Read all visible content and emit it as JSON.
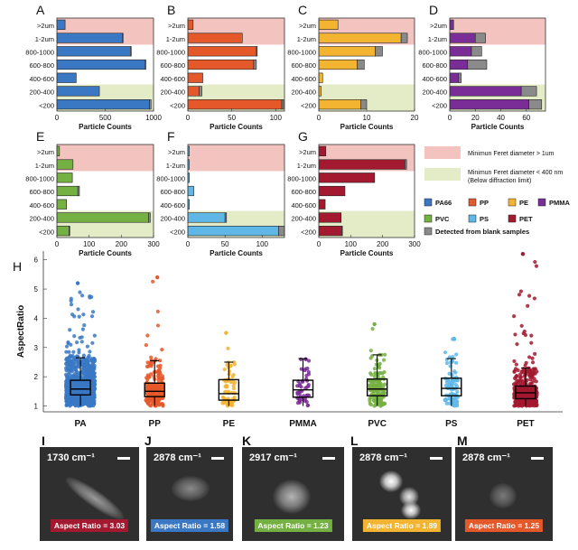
{
  "colors": {
    "PA66": "#3a78c4",
    "PP": "#e5582a",
    "PE": "#f2b431",
    "PMMA": "#7b2d97",
    "PVC": "#75b043",
    "PS": "#5fb7e8",
    "PET": "#a3192f",
    "blank": "#8a8a8a",
    "pink": "#f3c3bf",
    "green": "#e4ecc7"
  },
  "chart_data": [
    {
      "type": "bar",
      "panel": "A",
      "material": "PA66",
      "categories": [
        ">2um",
        "1-2um",
        "800-1000",
        "600-800",
        "400-600",
        "200-400",
        "<200"
      ],
      "values": [
        85,
        680,
        760,
        915,
        200,
        440,
        960
      ],
      "blank": [
        0,
        5,
        10,
        5,
        0,
        0,
        15
      ],
      "xlim": [
        0,
        1000
      ],
      "xticks": [
        "0",
        "500",
        "1000"
      ],
      "xlabel": "Particle Counts"
    },
    {
      "type": "bar",
      "panel": "B",
      "material": "PP",
      "categories": [
        ">2um",
        "1-2um",
        "800-1000",
        "600-800",
        "400-600",
        "200-400",
        "<200"
      ],
      "values": [
        6,
        62,
        78,
        75,
        17,
        13,
        107
      ],
      "blank": [
        0,
        0,
        1,
        3,
        0,
        3,
        2
      ],
      "xlim": [
        0,
        110
      ],
      "xticks": [
        "0",
        "50",
        "100"
      ],
      "xlabel": "Particle Counts"
    },
    {
      "type": "bar",
      "panel": "C",
      "material": "PE",
      "categories": [
        ">2um",
        "1-2um",
        "800-1000",
        "600-800",
        "400-600",
        "200-400",
        "<200"
      ],
      "values": [
        4,
        17.2,
        11.8,
        8,
        0.8,
        0.5,
        8.8
      ],
      "blank": [
        0,
        1.3,
        1.5,
        1.5,
        0,
        0,
        1.2
      ],
      "xlim": [
        0,
        20
      ],
      "xticks": [
        "0",
        "10",
        "20"
      ],
      "xlabel": "Particle Counts"
    },
    {
      "type": "bar",
      "panel": "D",
      "material": "PMMA",
      "categories": [
        ">2um",
        "1-2um",
        "800-1000",
        "600-800",
        "400-600",
        "200-400",
        "<200"
      ],
      "values": [
        3,
        20,
        17,
        14,
        7,
        56,
        62
      ],
      "blank": [
        0,
        8,
        8,
        15,
        2,
        12,
        10
      ],
      "xlim": [
        0,
        75
      ],
      "xticks": [
        "0",
        "20",
        "40",
        "60"
      ],
      "xlabel": "Particle Counts"
    },
    {
      "type": "bar",
      "panel": "E",
      "material": "PVC",
      "categories": [
        ">2um",
        "1-2um",
        "800-1000",
        "600-800",
        "400-600",
        "200-400",
        "<200"
      ],
      "values": [
        8,
        50,
        48,
        65,
        30,
        285,
        38
      ],
      "blank": [
        0,
        0,
        0,
        5,
        0,
        5,
        2
      ],
      "xlim": [
        0,
        300
      ],
      "xticks": [
        "0",
        "100",
        "200",
        "300"
      ],
      "xlabel": "Particle Counts"
    },
    {
      "type": "bar",
      "panel": "F",
      "material": "PS",
      "categories": [
        ">2um",
        "1-2um",
        "800-1000",
        "600-800",
        "400-600",
        "200-400",
        "<200"
      ],
      "values": [
        2,
        2,
        2,
        8,
        2,
        50,
        122
      ],
      "blank": [
        0,
        0,
        0,
        0,
        0,
        2,
        8
      ],
      "xlim": [
        0,
        130
      ],
      "xticks": [
        "0",
        "50",
        "100"
      ],
      "xlabel": "Particle Counts"
    },
    {
      "type": "bar",
      "panel": "G",
      "material": "PET",
      "categories": [
        ">2um",
        "1-2um",
        "800-1000",
        "600-800",
        "400-600",
        "200-400",
        "<200"
      ],
      "values": [
        22,
        270,
        175,
        82,
        20,
        70,
        72
      ],
      "blank": [
        0,
        5,
        0,
        0,
        0,
        0,
        2
      ],
      "xlim": [
        0,
        300
      ],
      "xticks": [
        "0",
        "100",
        "200",
        "300"
      ],
      "xlabel": "Particle Counts"
    },
    {
      "type": "box",
      "panel": "H",
      "title": "",
      "ylabel": "AspectRatio",
      "ylim": [
        0.8,
        6.3
      ],
      "yticks": [
        1,
        2,
        3,
        4,
        5,
        6
      ],
      "categories": [
        "PA",
        "PP",
        "PE",
        "PMMA",
        "PVC",
        "PS",
        "PET"
      ],
      "q1": [
        1.38,
        1.32,
        1.2,
        1.3,
        1.35,
        1.35,
        1.25
      ],
      "median": [
        1.58,
        1.5,
        1.42,
        1.55,
        1.58,
        1.6,
        1.45
      ],
      "q3": [
        1.88,
        1.78,
        1.9,
        1.88,
        1.92,
        1.95,
        1.68
      ],
      "whisker_low": [
        1,
        1,
        1,
        1,
        1,
        1,
        1
      ],
      "whisker_high": [
        2.65,
        2.55,
        2.5,
        2.62,
        2.75,
        2.62,
        2.3
      ],
      "max_outlier": [
        5.2,
        5.4,
        3.5,
        2.6,
        3.8,
        3.3,
        6.2
      ],
      "point_counts": [
        900,
        220,
        60,
        45,
        150,
        90,
        420
      ]
    }
  ],
  "legend": {
    "feret_1um": "Minimun Feret diameter > 1um",
    "feret_400nm_line1": "Minimun Feret diameter < 400 nm",
    "feret_400nm_line2": "(Below diffraction limit)",
    "materials": [
      "PA66",
      "PP",
      "PE",
      "PMMA",
      "PVC",
      "PS",
      "PET"
    ],
    "blank": "Detected from blank samples"
  },
  "panels": {
    "labels": [
      "A",
      "B",
      "C",
      "D",
      "E",
      "F",
      "G",
      "H"
    ]
  },
  "images": [
    {
      "label": "I",
      "wavenumber": "1730 cm⁻¹",
      "aspect": "Aspect Ratio = 3.03",
      "color": "#a3192f"
    },
    {
      "label": "J",
      "wavenumber": "2878 cm⁻¹",
      "aspect": "Aspect Ratio = 1.58",
      "color": "#3a78c4"
    },
    {
      "label": "K",
      "wavenumber": "2917 cm⁻¹",
      "aspect": "Aspect Ratio = 1.23",
      "color": "#75b043"
    },
    {
      "label": "L",
      "wavenumber": "2878 cm⁻¹",
      "aspect": "Aspect Ratio = 1.89",
      "color": "#f2b431"
    },
    {
      "label": "M",
      "wavenumber": "2878 cm⁻¹",
      "aspect": "Aspect Ratio = 1.25",
      "color": "#e5582a"
    }
  ]
}
